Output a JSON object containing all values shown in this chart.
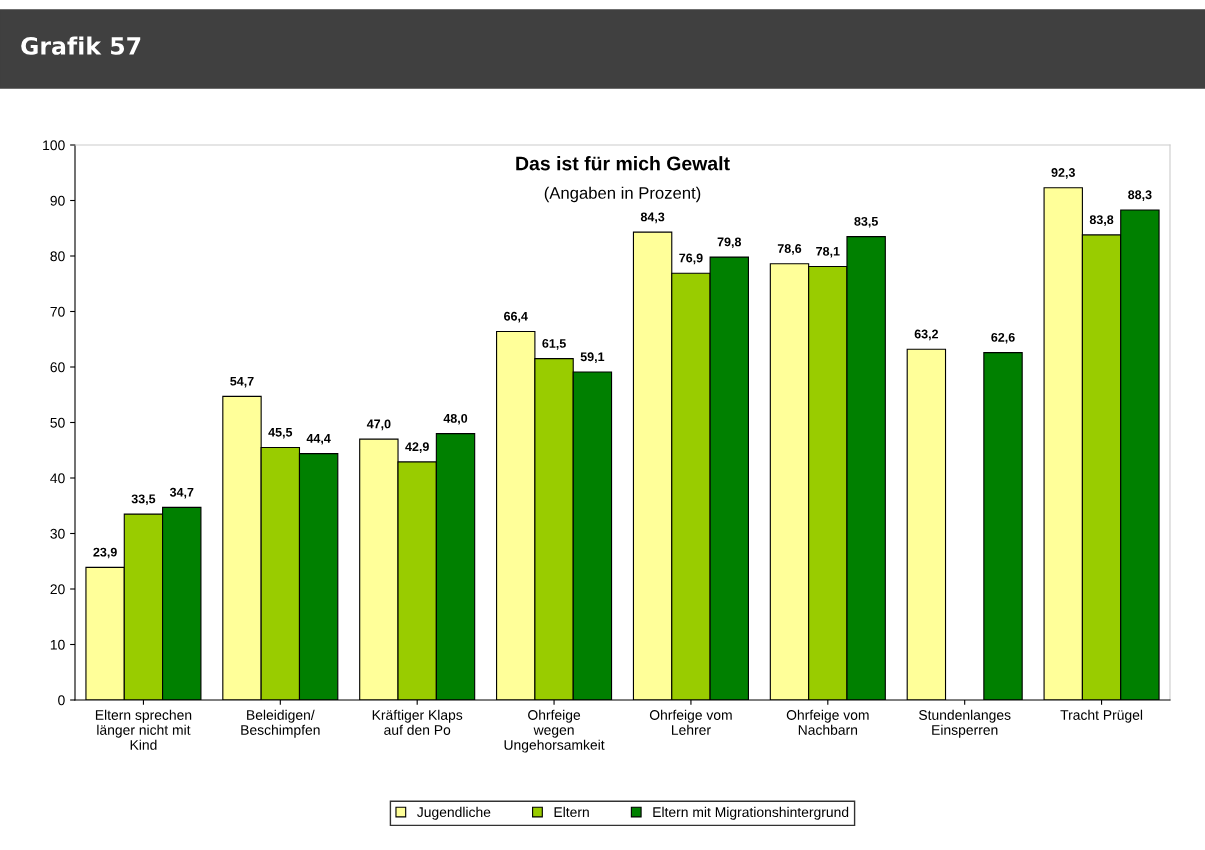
{
  "chart_data": {
    "type": "bar",
    "title": "Das ist für mich Gewalt",
    "subtitle": "(Angaben in Prozent)",
    "annotations": [
      "Grafik 57"
    ],
    "categories": [
      "Eltern sprechen\nlänger nicht mit\nKind",
      "Beleidigen/\nBeschimpfen",
      "Kräftiger Klaps\nauf den Po",
      "Ohrfeige\nwegen\nUngehorsamkeit",
      "Ohrfeige vom\nLehrer",
      "Ohrfeige vom\nNachbarn",
      "Stundenlanges\nEinsperren",
      "Tracht Prügel"
    ],
    "series": [
      {
        "name": "Jugendliche",
        "color": "#ffff99",
        "values": [
          23.9,
          54.7,
          47.0,
          66.4,
          84.3,
          78.6,
          63.2,
          92.3
        ],
        "value_labels": [
          "23,9",
          "54,7",
          "47,0",
          "66,4",
          "84,3",
          "78,6",
          "63,2",
          "92,3"
        ]
      },
      {
        "name": "Eltern",
        "color": "#99cc00",
        "values": [
          33.5,
          45.5,
          42.9,
          61.5,
          76.9,
          78.1,
          null,
          83.8
        ],
        "value_labels": [
          "33,5",
          "45,5",
          "42,9",
          "61,5",
          "76,9",
          "78,1",
          null,
          "83,8"
        ]
      },
      {
        "name": "Eltern mit Migrationshintergrund",
        "color": "#008000",
        "values": [
          34.7,
          44.4,
          48.0,
          59.1,
          79.8,
          83.5,
          62.6,
          88.3
        ],
        "value_labels": [
          "34,7",
          "44,4",
          "48,0",
          "59,1",
          "79,8",
          "83,5",
          "62,6",
          "88,3"
        ]
      }
    ],
    "ylim": [
      0,
      100
    ],
    "yticks": [
      0,
      10,
      20,
      30,
      40,
      50,
      60,
      70,
      80,
      90,
      100
    ],
    "grid": false,
    "legend": "bottom"
  }
}
